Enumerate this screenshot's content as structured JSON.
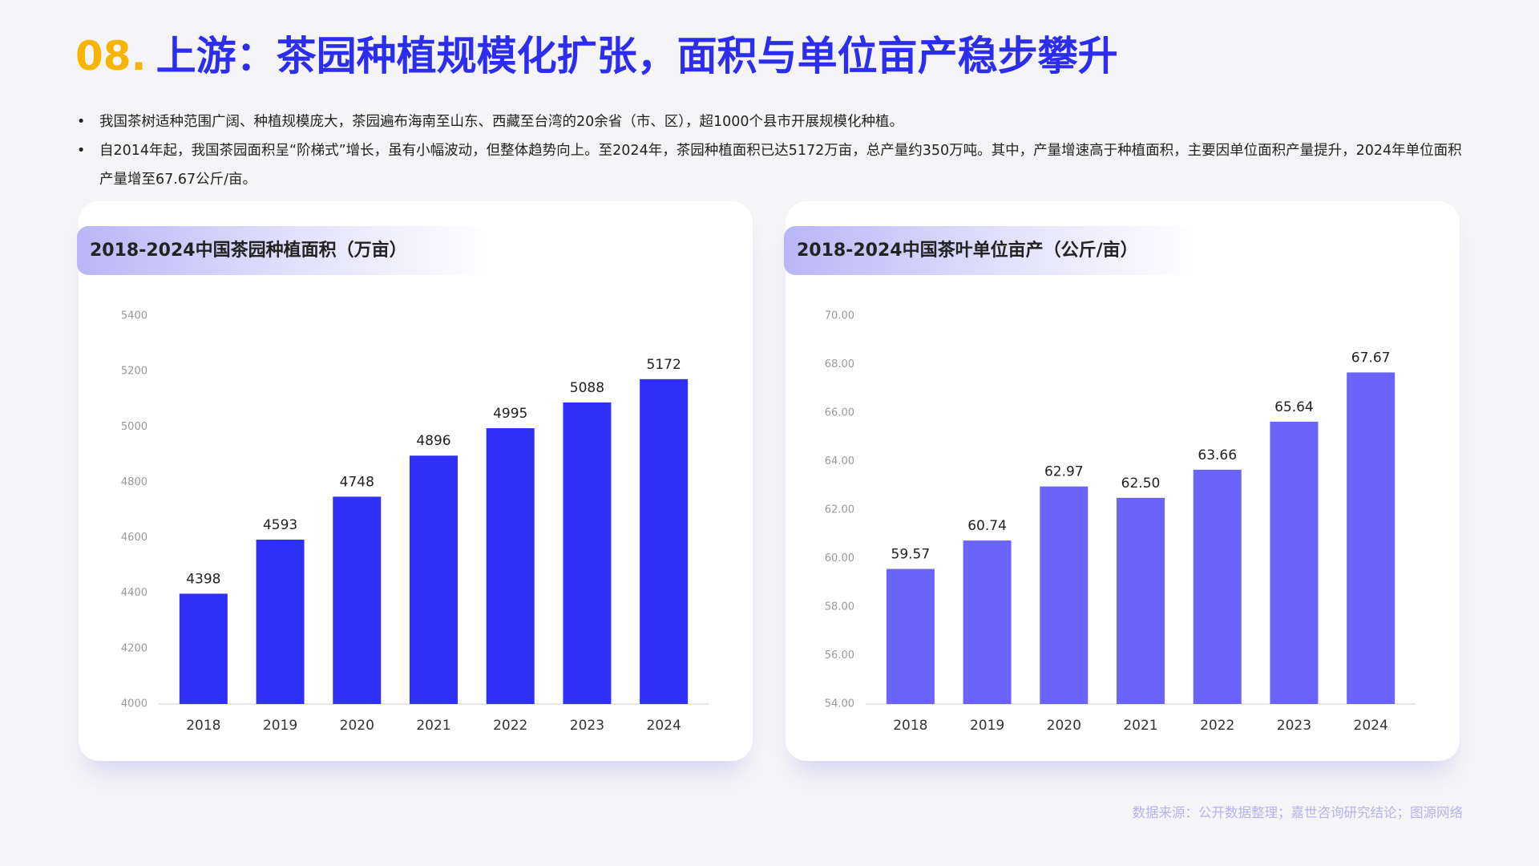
{
  "header": {
    "number": "08.",
    "title": "上游：茶园种植规模化扩张，面积与单位亩产稳步攀升"
  },
  "bullets": [
    "我国茶树适种范围广阔、种植规模庞大，茶园遍布海南至山东、西藏至台湾的20余省（市、区），超1000个县市开展规模化种植。",
    "自2014年起，我国茶园面积呈“阶梯式”增长，虽有小幅波动，但整体趋势向上。至2024年，茶园种植面积已达5172万亩，总产量约350万吨。其中，产量增速高于种植面积，主要因单位面积产量提升，2024年单位面积产量增至67.67公斤/亩。"
  ],
  "chart_data": [
    {
      "type": "bar",
      "title": "2018-2024中国茶园种植面积（万亩）",
      "categories": [
        "2018",
        "2019",
        "2020",
        "2021",
        "2022",
        "2023",
        "2024"
      ],
      "values": [
        4398,
        4593,
        4748,
        4896,
        4995,
        5088,
        5172
      ],
      "color": "#2f2ff7",
      "ylim": [
        4000,
        5400
      ],
      "yticks": [
        4000,
        4200,
        4400,
        4600,
        4800,
        5000,
        5200,
        5400
      ]
    },
    {
      "type": "bar",
      "title": "2018-2024中国茶叶单位亩产（公斤/亩）",
      "categories": [
        "2018",
        "2019",
        "2020",
        "2021",
        "2022",
        "2023",
        "2024"
      ],
      "values": [
        59.57,
        60.74,
        62.97,
        62.5,
        63.66,
        65.64,
        67.67
      ],
      "value_labels": [
        "59.57",
        "60.74",
        "62.97",
        "62.50",
        "63.66",
        "65.64",
        "67.67"
      ],
      "color": "#6a64fa",
      "ylim": [
        54,
        70
      ],
      "yticks": [
        {
          "value": 54,
          "label": "54.00"
        },
        {
          "value": 56,
          "label": "56.00"
        },
        {
          "value": 58,
          "label": "58.00"
        },
        {
          "value": 60,
          "label": "60.00"
        },
        {
          "value": 62,
          "label": "62.00"
        },
        {
          "value": 64,
          "label": "64.00"
        },
        {
          "value": 66,
          "label": "66.00"
        },
        {
          "value": 68,
          "label": "68.00"
        },
        {
          "value": 70,
          "label": "70.00"
        }
      ]
    }
  ],
  "source": "数据来源：公开数据整理；嘉世咨询研究结论；图源网络"
}
